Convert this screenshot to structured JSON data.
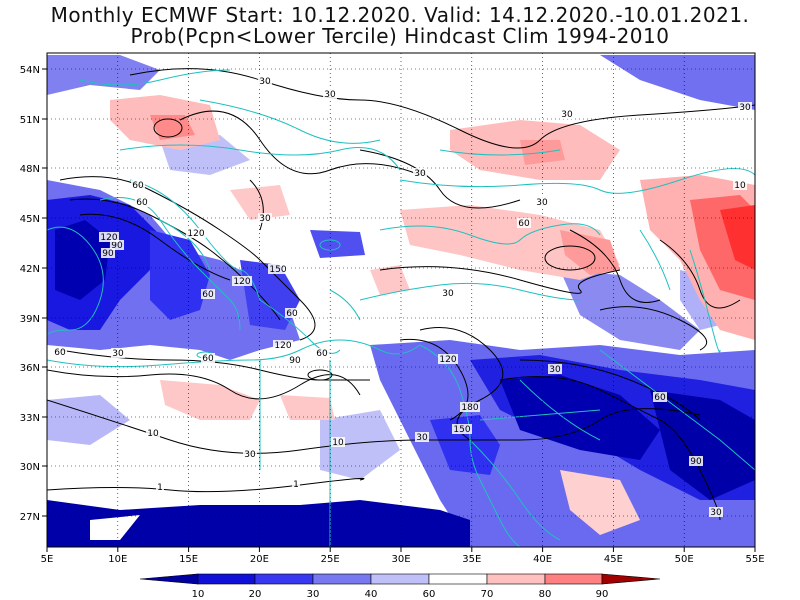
{
  "title": {
    "line1": "Monthly ECMWF Start: 10.12.2020. Valid: 14.12.2020.-10.01.2021.",
    "line2": "Prob(Pcpn<Lower Tercile) Hindcast Clim 1994-2010"
  },
  "axes": {
    "lon_ticks": [
      "5E",
      "10E",
      "15E",
      "20E",
      "25E",
      "30E",
      "35E",
      "40E",
      "45E",
      "50E",
      "55E"
    ],
    "lat_ticks": [
      "54N",
      "51N",
      "48N",
      "45N",
      "42N",
      "39N",
      "36N",
      "33N",
      "30N",
      "27N"
    ]
  },
  "colorbar": {
    "labels": [
      "10",
      "20",
      "30",
      "40",
      "60",
      "70",
      "80",
      "90"
    ],
    "colors": [
      "#0000a0",
      "#1010d8",
      "#3838f0",
      "#7878f0",
      "#c0c0f8",
      "#ffffff",
      "#ffc0c0",
      "#ff8080",
      "#ff4040",
      "#ff0000",
      "#a00000"
    ]
  },
  "contour_labels": [
    "30",
    "30",
    "30",
    "30",
    "30",
    "30",
    "60",
    "60",
    "60",
    "60",
    "90",
    "90",
    "120",
    "120",
    "120",
    "150",
    "180",
    "60",
    "30",
    "10",
    "10",
    "1",
    "1",
    "30",
    "60",
    "90",
    "60",
    "30",
    "10",
    "30",
    "120",
    "60",
    "90",
    "150",
    "120",
    "30",
    "30",
    "60",
    "30"
  ],
  "colors": {
    "coast": "#20c0c0",
    "contour": "#000000",
    "grid": "#000000"
  }
}
